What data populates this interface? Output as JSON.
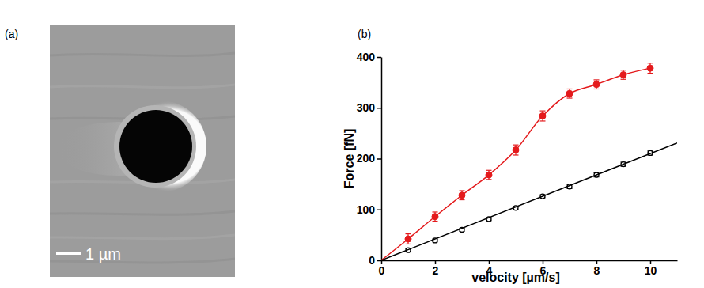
{
  "panel_a": {
    "label": "(a)",
    "scale_bar": "1 µm"
  },
  "chart_data": {
    "type": "scatter",
    "panel_label": "(b)",
    "x_label": "velocity [µm/s]",
    "y_label": "Force [fN]",
    "xlim": [
      0,
      11
    ],
    "xticks": [
      0,
      2,
      4,
      6,
      8,
      10
    ],
    "ylim": [
      0,
      400
    ],
    "yticks": [
      0,
      100,
      200,
      300,
      400
    ],
    "grid": false,
    "series": [
      {
        "type": "scatter",
        "color": "#e41a1c",
        "marker": "circle",
        "x": [
          1,
          2,
          3,
          4,
          5,
          6,
          7,
          8,
          9,
          10
        ],
        "values": [
          42,
          86,
          128,
          168,
          217,
          284,
          328,
          346,
          365,
          378
        ],
        "errors": [
          10,
          9,
          9,
          9,
          10,
          10,
          9,
          9,
          9,
          10
        ]
      },
      {
        "type": "line",
        "color": "#e41a1c",
        "line_style": "smooth",
        "x": [
          0,
          1,
          2,
          3,
          4,
          5,
          6,
          7,
          8,
          9,
          10
        ],
        "values": [
          0,
          42,
          86,
          128,
          168,
          217,
          284,
          328,
          346,
          365,
          378
        ]
      },
      {
        "type": "scatter",
        "color": "#000000",
        "marker": "circle-open",
        "x": [
          1,
          2,
          3,
          4,
          5,
          6,
          7,
          8,
          9,
          10
        ],
        "values": [
          20,
          39,
          60,
          81,
          103,
          126,
          145,
          168,
          189,
          211
        ],
        "errors": [
          3,
          3,
          3,
          3,
          3,
          3,
          4,
          4,
          4,
          4
        ]
      },
      {
        "type": "line",
        "color": "#000000",
        "line_style": "solid",
        "x": [
          0,
          11
        ],
        "values": [
          0,
          231
        ]
      }
    ]
  }
}
